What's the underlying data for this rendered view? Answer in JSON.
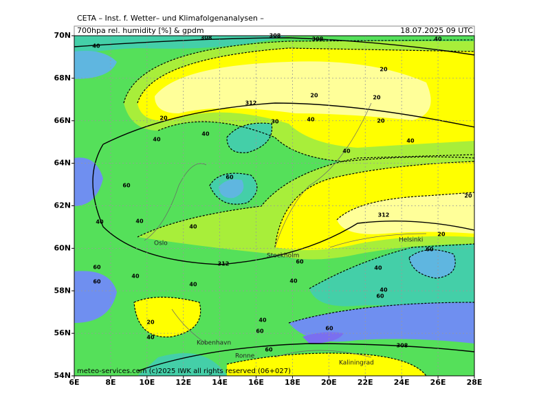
{
  "header": {
    "title": "CETA – Inst. f. Wetter– und Klimafolgenanalysen –",
    "subtitle": "700hpa rel. humidity [%] & gpdm",
    "datetime": "18.07.2025 09 UTC"
  },
  "axes": {
    "lat": [
      {
        "value": 54,
        "label": "54N"
      },
      {
        "value": 56,
        "label": "56N"
      },
      {
        "value": 58,
        "label": "58N"
      },
      {
        "value": 60,
        "label": "60N"
      },
      {
        "value": 62,
        "label": "62N"
      },
      {
        "value": 64,
        "label": "64N"
      },
      {
        "value": 66,
        "label": "66N"
      },
      {
        "value": 68,
        "label": "68N"
      },
      {
        "value": 70,
        "label": "70N"
      }
    ],
    "lon": [
      {
        "value": 6,
        "label": "6E"
      },
      {
        "value": 8,
        "label": "8E"
      },
      {
        "value": 10,
        "label": "10E"
      },
      {
        "value": 12,
        "label": "12E"
      },
      {
        "value": 14,
        "label": "14E"
      },
      {
        "value": 16,
        "label": "16E"
      },
      {
        "value": 18,
        "label": "18E"
      },
      {
        "value": 20,
        "label": "20E"
      },
      {
        "value": 22,
        "label": "22E"
      },
      {
        "value": 24,
        "label": "24E"
      },
      {
        "value": 26,
        "label": "26E"
      },
      {
        "value": 28,
        "label": "28E"
      }
    ]
  },
  "cities": [
    "Oslo",
    "Stockholm",
    "Helsinki",
    "Kobenhavn",
    "Ronne",
    "Kaliningrad"
  ],
  "contour_labels": [
    "40",
    "20",
    "20",
    "20",
    "20",
    "20",
    "40",
    "40",
    "40",
    "40",
    "30",
    "40",
    "40",
    "60",
    "60",
    "40",
    "40",
    "40",
    "20",
    "312",
    "312",
    "312",
    "20",
    "60",
    "40",
    "40",
    "60",
    "60",
    "40",
    "40",
    "40",
    "60",
    "60",
    "20",
    "40",
    "40",
    "60",
    "60",
    "60",
    "308",
    "308",
    "308",
    "308"
  ],
  "footer": "meteo-services.com (c)2025 IWK all rights reserved (06+027)"
}
